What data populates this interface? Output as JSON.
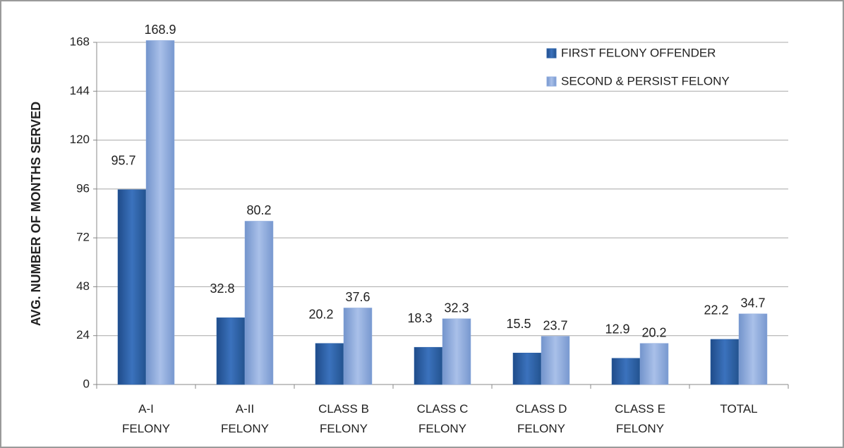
{
  "chart_data": {
    "type": "bar",
    "y_label": "AVG. NUMBER OF MONTHS SERVED",
    "categories": [
      "A-I FELONY",
      "A-II FELONY",
      "CLASS B FELONY",
      "CLASS C FELONY",
      "CLASS D FELONY",
      "CLASS E FELONY",
      "TOTAL"
    ],
    "series": [
      {
        "name": "FIRST FELONY OFFENDER",
        "color": "#2f64ab",
        "values": [
          95.7,
          32.8,
          20.2,
          18.3,
          15.5,
          12.9,
          22.2
        ]
      },
      {
        "name": "SECOND & PERSIST FELONY",
        "color": "#8eabde",
        "values": [
          168.9,
          80.2,
          37.6,
          32.3,
          23.7,
          20.2,
          34.7
        ]
      }
    ],
    "ylim": [
      0,
      168
    ],
    "yticks": [
      0,
      24,
      48,
      72,
      96,
      120,
      144,
      168
    ],
    "grid": true,
    "legend": "top-right"
  }
}
